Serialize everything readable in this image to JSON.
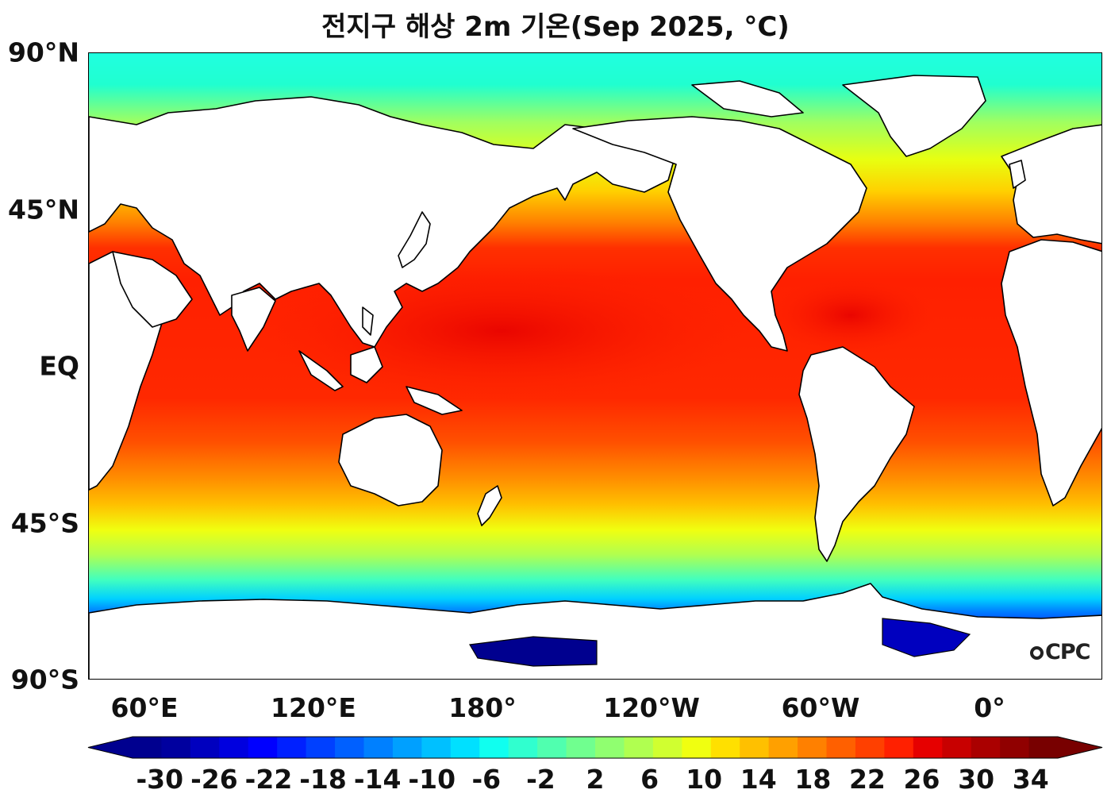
{
  "title": "전지구 해상 2m 기온(Sep 2025, °C)",
  "watermark": "CPC",
  "map": {
    "projection": "plate-carree",
    "central_longitude": 160,
    "lon_range": [
      40,
      400
    ],
    "lat_range": [
      -90,
      90
    ],
    "land_color": "#ffffff",
    "coastline_color": "#000000"
  },
  "lat_ticks": [
    {
      "value": 90,
      "label": "90°N"
    },
    {
      "value": 45,
      "label": "45°N"
    },
    {
      "value": 0,
      "label": "EQ"
    },
    {
      "value": -45,
      "label": "45°S"
    },
    {
      "value": -90,
      "label": "90°S"
    }
  ],
  "lon_ticks": [
    {
      "value": 60,
      "label": "60°E"
    },
    {
      "value": 120,
      "label": "120°E"
    },
    {
      "value": 180,
      "label": "180°"
    },
    {
      "value": 240,
      "label": "120°W"
    },
    {
      "value": 300,
      "label": "60°W"
    },
    {
      "value": 360,
      "label": "0°"
    }
  ],
  "colorbar": {
    "min": -32,
    "max": 36,
    "step": 2,
    "extend": "both",
    "tick_labels": [
      "-30",
      "-26",
      "-22",
      "-18",
      "-14",
      "-10",
      "-6",
      "-2",
      "2",
      "6",
      "10",
      "14",
      "18",
      "22",
      "26",
      "30",
      "34"
    ],
    "colors": [
      "#00008f",
      "#00009f",
      "#0000bf",
      "#0000df",
      "#0000ff",
      "#0020ff",
      "#0040ff",
      "#0060ff",
      "#0080ff",
      "#00a0ff",
      "#00c0ff",
      "#00e0ff",
      "#10ffef",
      "#30ffcf",
      "#50ffaf",
      "#70ff8f",
      "#90ff70",
      "#b0ff50",
      "#d0ff30",
      "#f0ff10",
      "#ffe000",
      "#ffc000",
      "#ffa000",
      "#ff8000",
      "#ff6000",
      "#ff4000",
      "#ff2000",
      "#e60000",
      "#c80000",
      "#aa0000",
      "#900000",
      "#780000"
    ]
  }
}
